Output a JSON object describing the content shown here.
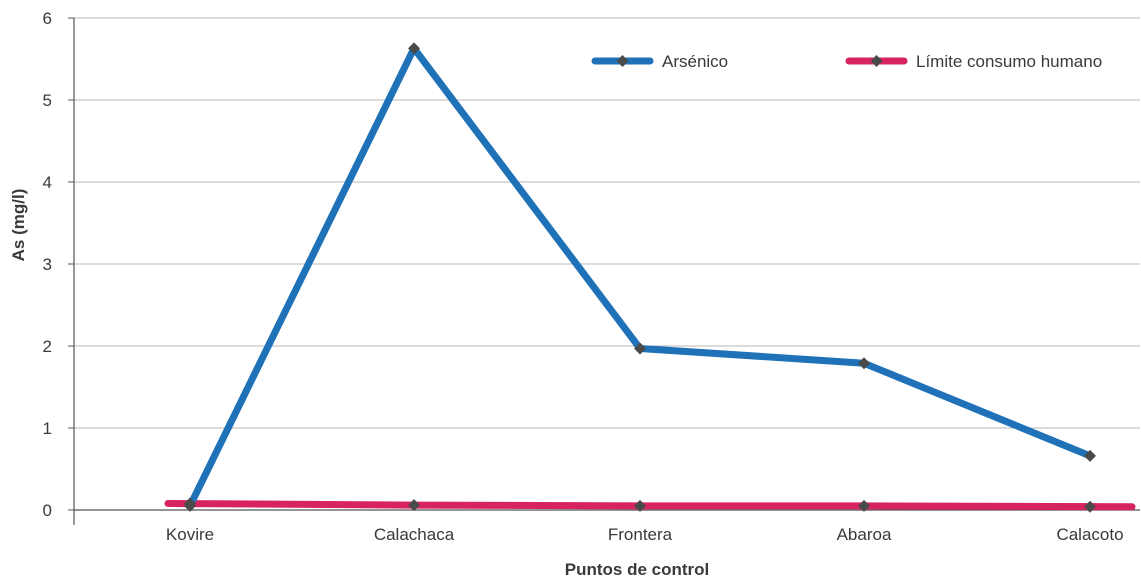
{
  "chart_data": {
    "type": "line",
    "categories": [
      "Kovire",
      "Calachaca",
      "Frontera",
      "Abaroa",
      "Calacoto"
    ],
    "series": [
      {
        "name": "Arsénico",
        "values": [
          0.05,
          5.63,
          1.97,
          1.79,
          0.66
        ],
        "color": "#1f72b8"
      },
      {
        "name": "Límite consumo humano",
        "values": [
          0.08,
          0.06,
          0.05,
          0.05,
          0.04
        ],
        "color": "#d8245e"
      }
    ],
    "marker_color": "#4a4a4a",
    "xlabel": "Puntos de control",
    "ylabel": "As (mg/l)",
    "ylim": [
      0,
      6
    ],
    "yticks": [
      0,
      1,
      2,
      3,
      4,
      5,
      6
    ],
    "grid": true,
    "legend_position": "top-right"
  }
}
